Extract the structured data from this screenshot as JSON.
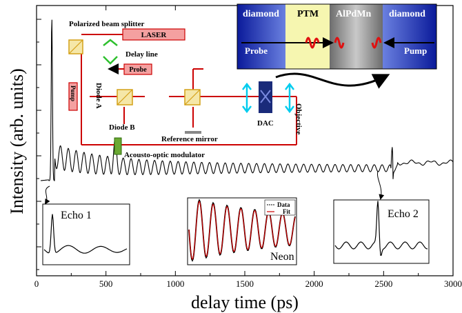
{
  "chart_data": {
    "type": "line",
    "xlabel": "delay time (ps)",
    "ylabel": "Intensity (arb. units)",
    "xlim": [
      0,
      3000
    ],
    "xticks": [
      0,
      500,
      1000,
      1500,
      2000,
      2500,
      3000
    ],
    "y_tick_labels": "none",
    "grid": false,
    "series": [
      {
        "x": [
          30,
          70,
          95,
          110,
          120,
          140,
          160,
          200,
          300,
          400,
          500,
          550,
          580,
          600,
          700,
          900,
          1200,
          1500,
          1800,
          2100,
          2400,
          2540,
          2560,
          2580,
          2700,
          3000
        ],
        "y": [
          0.05,
          0.05,
          0.35,
          0.99,
          0.25,
          0.1,
          0.18,
          0.12,
          0.13,
          0.2,
          0.22,
          0.3,
          0.38,
          0.28,
          0.27,
          0.27,
          0.3,
          0.33,
          0.35,
          0.37,
          0.38,
          0.44,
          0.33,
          0.38,
          0.38,
          0.38
        ]
      }
    ],
    "insets": [
      {
        "label": "Echo 1"
      },
      {
        "label": "Neon",
        "legend": [
          "Data",
          "Fit"
        ],
        "colors": {
          "data": "#000000",
          "fit": "#cc0000"
        }
      },
      {
        "label": "Echo 2"
      }
    ]
  },
  "setup": {
    "labels": {
      "pbs": "Polarized beam splitter",
      "laser": "LASER",
      "delay": "Delay line",
      "probe": "Probe",
      "pump": "Pump",
      "diodeA": "Diode A",
      "diodeB": "Diode B",
      "refmirror": "Reference mirror",
      "aom": "Acousto-optic modulator",
      "dac": "DAC",
      "objective": "Objective"
    },
    "colors": {
      "beam": "#cc0000",
      "optic": "#f5e7a8",
      "box": "#f4a0a0",
      "aom": "#6aa832",
      "dac": "#1a2b7a",
      "arrow": "#00ccee"
    }
  },
  "cell": {
    "headers": [
      "diamond",
      "PTM",
      "AlPdMn",
      "diamond"
    ],
    "probe": "Probe",
    "pump": "Pump",
    "colors": {
      "diamond": "#2a34b0",
      "ptm": "#f6f6b0",
      "alpdmn": "#a9a9a9",
      "pulse": "#e01010"
    }
  }
}
